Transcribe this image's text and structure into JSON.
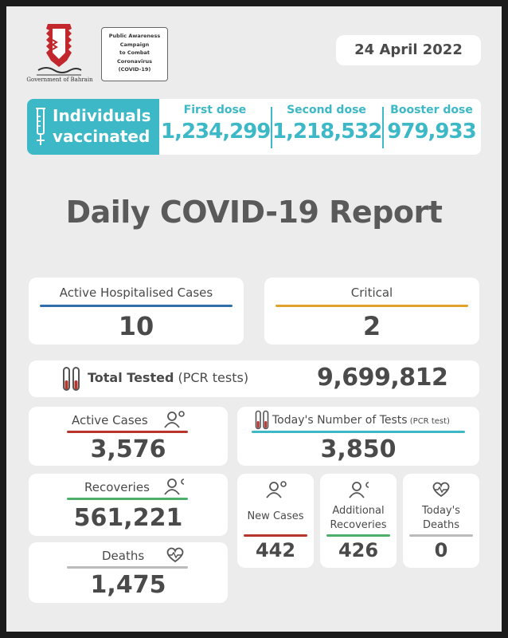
{
  "header": {
    "gov_label": "Government of Bahrain",
    "campaign_lines": [
      "Public Awareness",
      "Campaign",
      "to Combat",
      "Coronavirus",
      "(COVID-19)"
    ],
    "date": "24 April 2022"
  },
  "vaccination": {
    "title_line1": "Individuals",
    "title_line2": "vaccinated",
    "first_dose_label": "First dose",
    "first_dose_value": "1,234,299",
    "second_dose_label": "Second dose",
    "second_dose_value": "1,218,532",
    "booster_dose_label": "Booster dose",
    "booster_dose_value": "979,933"
  },
  "report_title": "Daily COVID-19 Report",
  "hospitalised": {
    "label": "Active Hospitalised Cases",
    "value": "10"
  },
  "critical": {
    "label": "Critical",
    "value": "2"
  },
  "total_tested": {
    "label_bold": "Total Tested",
    "label_light": " (PCR tests)",
    "value": "9,699,812"
  },
  "active_cases": {
    "label": "Active Cases",
    "value": "3,576"
  },
  "todays_tests": {
    "label": "Today's Number of Tests",
    "label_small": " (PCR test)",
    "value": "3,850"
  },
  "recoveries": {
    "label": "Recoveries",
    "value": "561,221"
  },
  "deaths": {
    "label": "Deaths",
    "value": "1,475"
  },
  "new_cases": {
    "label": "New Cases",
    "value": "442"
  },
  "additional_recoveries": {
    "label_line1": "Additional",
    "label_line2": "Recoveries",
    "value": "426"
  },
  "todays_deaths": {
    "label_line1": "Today's",
    "label_line2": "Deaths",
    "value": "0"
  },
  "colors": {
    "teal": "#3cb8c6",
    "blue": "#2f6ea8",
    "orange": "#e0a22c",
    "red": "#b8352c",
    "green": "#4caf6a",
    "gray_text": "#4a4a4a",
    "background": "#ececec"
  },
  "icons": [
    "bahrain-emblem",
    "syringe-icon",
    "test-tubes-icon",
    "person-virus-icon",
    "person-recovered-icon",
    "heart-pulse-icon"
  ]
}
